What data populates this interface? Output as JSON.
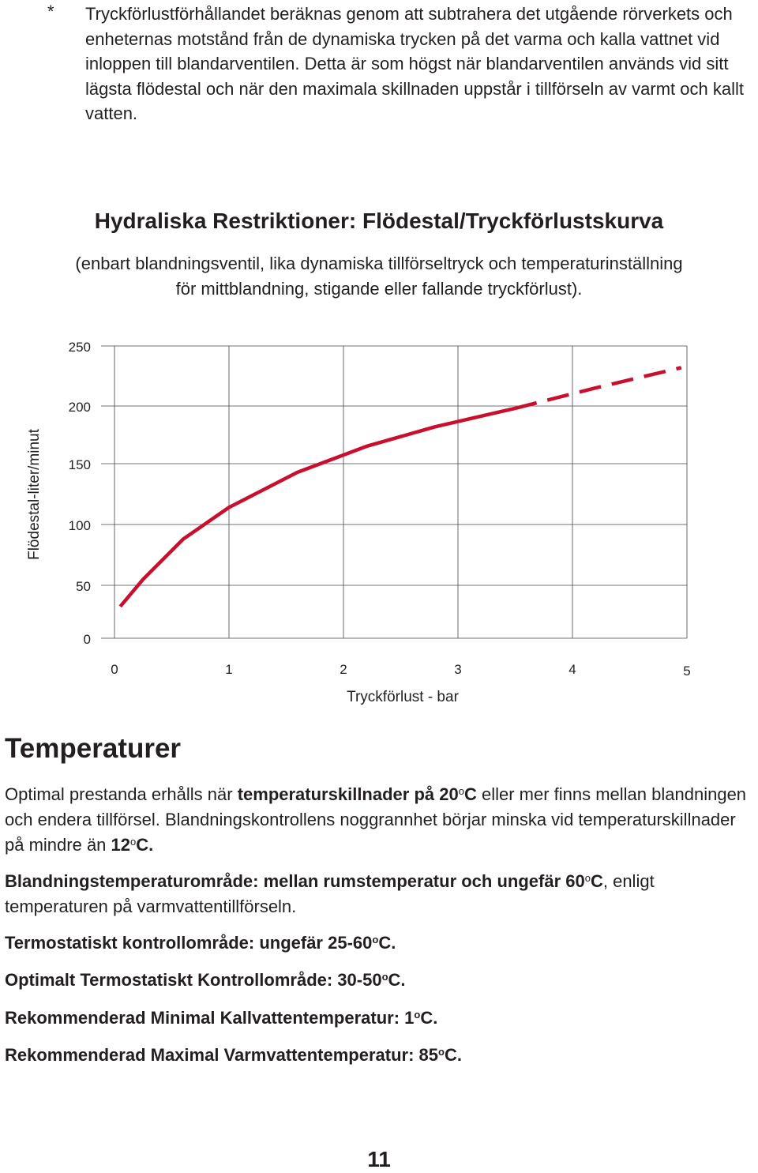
{
  "footnote": {
    "marker": "*",
    "text": "Tryckförlustförhållandet beräknas genom att subtrahera det utgående rörverkets och enheternas motstånd från de dynamiska trycken på det varma och kalla vattnet vid inloppen till blandarventilen. Detta är som högst när blandarventilen används vid sitt lägsta flödestal och när den maximala skillnaden uppstår i tillförseln av varmt och kallt vatten."
  },
  "chart_title": "Hydraliska Restriktioner: Flödestal/Tryckförlustskurva",
  "chart_subtitle_line1": "(enbart blandningsventil, lika dynamiska tillförseltryck och temperaturinställning",
  "chart_subtitle_line2": "för mittblandning, stigande eller fallande tryckförlust).",
  "chart_data": {
    "type": "line",
    "xlabel": "Tryckförlust - bar",
    "ylabel": "Flödestal-liter/minut",
    "x_ticks": [
      "0",
      "1",
      "2",
      "3",
      "4",
      "5"
    ],
    "y_ticks": [
      "0",
      "50",
      "100",
      "150",
      "200",
      "250"
    ],
    "xlim": [
      0,
      5
    ],
    "ylim": [
      0,
      250
    ],
    "grid": true,
    "line_color": "#c8102e",
    "series": [
      {
        "style": "solid",
        "x": [
          0.05,
          0.25,
          0.6,
          1.0,
          1.6,
          2.2,
          2.8,
          3.5
        ],
        "y": [
          30,
          55,
          88,
          114,
          143,
          165,
          182,
          198
        ]
      },
      {
        "style": "dashed",
        "x": [
          3.5,
          4.2,
          4.95
        ],
        "y": [
          198,
          215,
          232
        ]
      }
    ]
  },
  "section": {
    "heading": "Temperaturer",
    "para1": {
      "t1": "Optimal prestanda erhålls när ",
      "b1": "temperaturskillnader på 20",
      "sup1": "o",
      "b2": "C",
      "t2": " eller mer finns mellan blandningen och endera tillförsel. Blandningskontrollens noggrannhet börjar minska vid temperaturskillnader på mindre  än ",
      "b3": "12",
      "sup2": "o",
      "b4": "C."
    },
    "para2": {
      "b1": "Blandningstemperaturområde: mellan rumstemperatur och ungefär 60",
      "sup": "o",
      "b2": "C",
      "t1": ", enligt temperaturen på varmvattentillförseln."
    },
    "specs": [
      {
        "label": "Termostatiskt kontrollområde: ungefär 25-60",
        "sup": "o",
        "unit": "C."
      },
      {
        "label": "Optimalt Termostatiskt Kontrollområde: 30-50",
        "sup": "o",
        "unit": "C."
      },
      {
        "label": "Rekommenderad Minimal Kallvattentemperatur: 1",
        "sup": "o",
        "unit": "C."
      },
      {
        "label": "Rekommenderad Maximal Varmvattentemperatur: 85",
        "sup": "o",
        "unit": "C."
      }
    ]
  },
  "page_number": "11"
}
